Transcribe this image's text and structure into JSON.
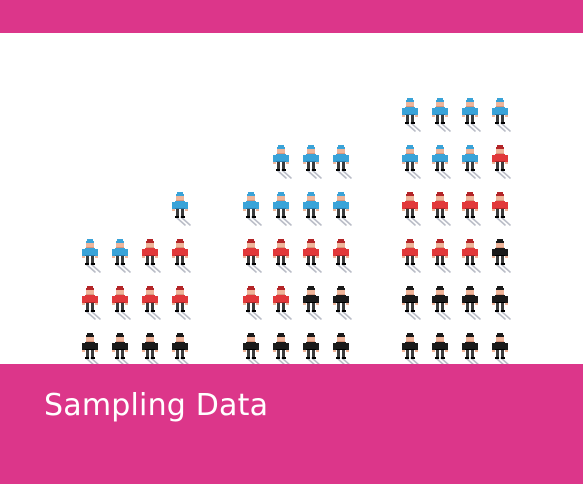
{
  "caption": "Sampling Data",
  "colors": {
    "band": "#dc368a",
    "caption_text": "#ffffff",
    "skin": "#efb59a",
    "skin_shadow": "#d9967c",
    "blue": "#3aa3d8",
    "blue_dark": "#2a7fb2",
    "red": "#e1383a",
    "red_dark": "#b42528",
    "black": "#1a1a1a",
    "black_dark": "#000000",
    "leg": "#3b3b3b",
    "ski": "#b9bcc6"
  },
  "icons": {
    "person": "skier-figure-icon"
  },
  "groups": [
    {
      "name": "sample-small",
      "rows_bottom_to_top": [
        [
          "black",
          "black",
          "black",
          "black"
        ],
        [
          "red",
          "red",
          "red",
          "red"
        ],
        [
          "blue",
          "blue",
          "red",
          "red"
        ],
        [
          "",
          "",
          "",
          "blue"
        ]
      ]
    },
    {
      "name": "sample-medium",
      "rows_bottom_to_top": [
        [
          "black",
          "black",
          "black",
          "black"
        ],
        [
          "red",
          "red",
          "black",
          "black"
        ],
        [
          "red",
          "red",
          "red",
          "red"
        ],
        [
          "blue",
          "blue",
          "blue",
          "blue"
        ],
        [
          "",
          "blue",
          "blue",
          "blue"
        ]
      ]
    },
    {
      "name": "sample-large",
      "rows_bottom_to_top": [
        [
          "black",
          "black",
          "black",
          "black"
        ],
        [
          "black",
          "black",
          "black",
          "black"
        ],
        [
          "red",
          "red",
          "red",
          "black"
        ],
        [
          "red",
          "red",
          "red",
          "red"
        ],
        [
          "blue",
          "blue",
          "blue",
          "red"
        ],
        [
          "blue",
          "blue",
          "blue",
          "blue"
        ]
      ]
    }
  ]
}
